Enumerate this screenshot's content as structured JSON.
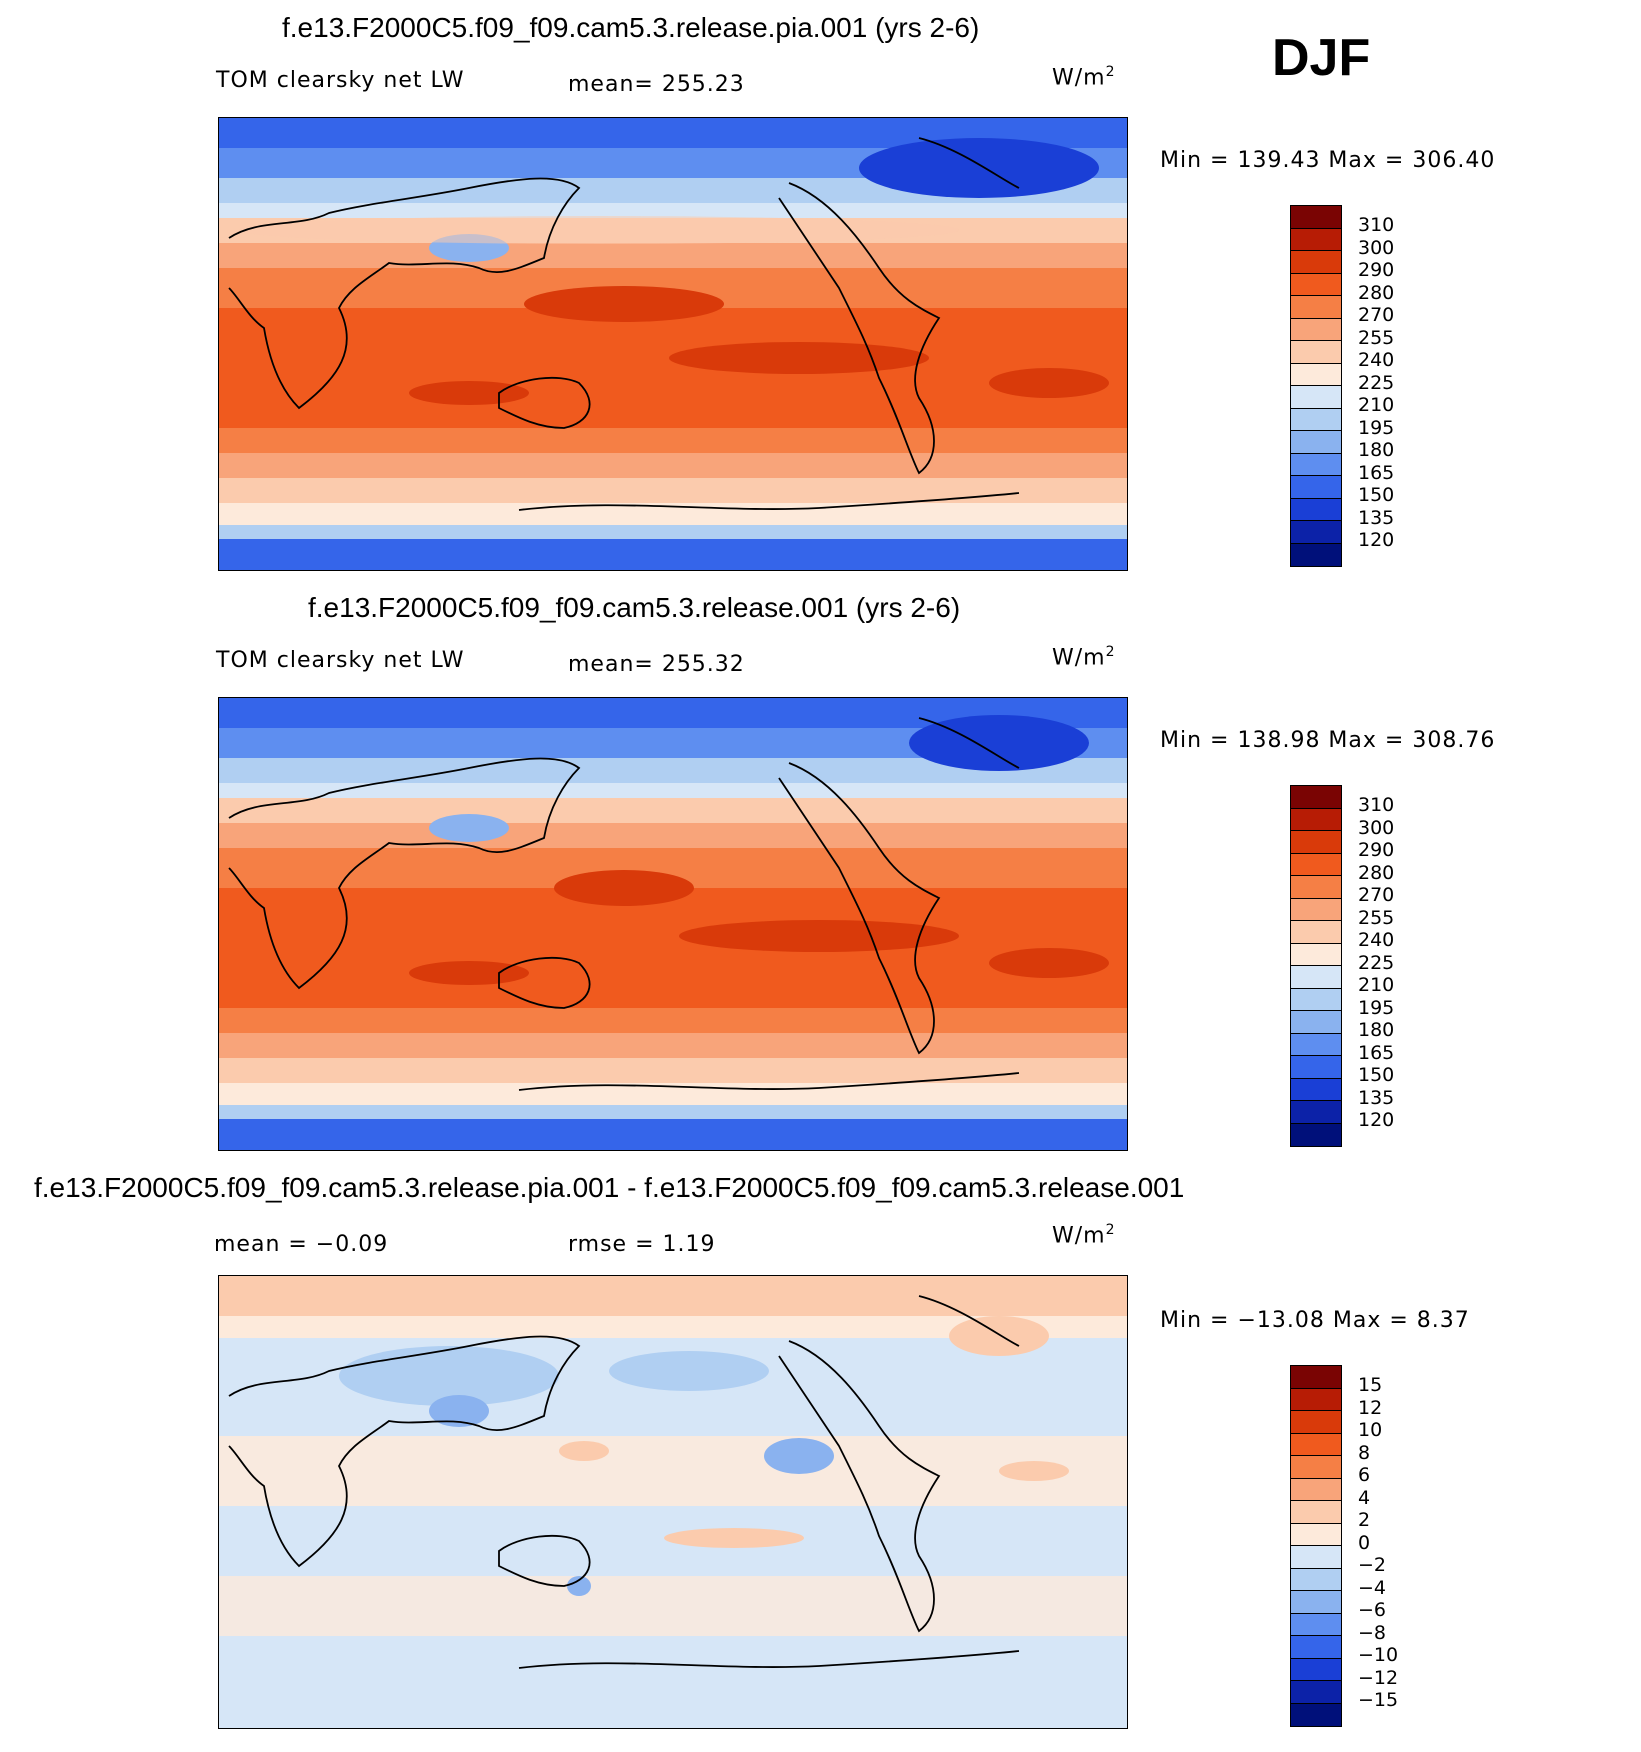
{
  "season": "DJF",
  "panels": [
    {
      "title": "f.e13.F2000C5.f09_f09.cam5.3.release.pia.001 (yrs 2-6)",
      "left_label": "TOM clearsky net LW",
      "stat_label": "mean= 255.23",
      "units": "W/m",
      "units_sup": "2",
      "minmax": "Min = 139.43 Max = 306.40",
      "map_type": "full-field"
    },
    {
      "title": "f.e13.F2000C5.f09_f09.cam5.3.release.001 (yrs 2-6)",
      "left_label": "TOM clearsky net LW",
      "stat_label": "mean= 255.32",
      "units": "W/m",
      "units_sup": "2",
      "minmax": "Min = 138.98 Max = 308.76",
      "map_type": "full-field"
    },
    {
      "title": "f.e13.F2000C5.f09_f09.cam5.3.release.pia.001 - f.e13.F2000C5.f09_f09.cam5.3.release.001",
      "left_label": "mean =   −0.09",
      "stat_label": "rmse =    1.19",
      "units": "W/m",
      "units_sup": "2",
      "minmax": "Min = −13.08 Max =    8.37",
      "map_type": "difference"
    }
  ],
  "colorbars": {
    "field": {
      "labels": [
        "310",
        "300",
        "290",
        "280",
        "270",
        "255",
        "240",
        "225",
        "210",
        "195",
        "180",
        "165",
        "150",
        "135",
        "120"
      ],
      "colors": [
        "#7a0403",
        "#b71c05",
        "#d93a0a",
        "#f05a1e",
        "#f57f45",
        "#f8a47a",
        "#fbcbad",
        "#fdeadb",
        "#d6e6f7",
        "#b0cff2",
        "#8ab2ef",
        "#5e8ef0",
        "#3565ea",
        "#1a3fd6",
        "#0c22a8",
        "#00107a"
      ]
    },
    "diff": {
      "labels": [
        "15",
        "12",
        "10",
        "8",
        "6",
        "4",
        "2",
        "0",
        "−2",
        "−4",
        "−6",
        "−8",
        "−10",
        "−12",
        "−15"
      ],
      "colors": [
        "#7a0403",
        "#b71c05",
        "#d93a0a",
        "#f05a1e",
        "#f57f45",
        "#f8a47a",
        "#fbcbad",
        "#fdeadb",
        "#d6e6f7",
        "#b0cff2",
        "#8ab2ef",
        "#5e8ef0",
        "#3565ea",
        "#1a3fd6",
        "#0c22a8",
        "#00107a"
      ]
    }
  }
}
